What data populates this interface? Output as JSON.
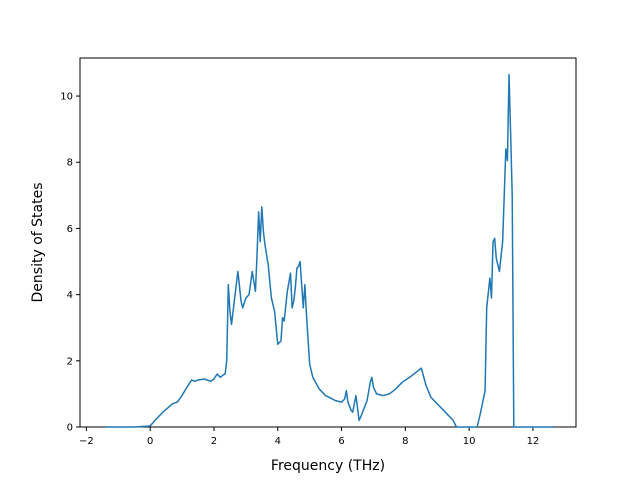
{
  "chart_data": {
    "type": "line",
    "title": "",
    "xlabel": "Frequency (THz)",
    "ylabel": "Density of States",
    "xlim": [
      -2.2,
      13.35
    ],
    "ylim": [
      0,
      11.15
    ],
    "xticks": [
      -2,
      0,
      2,
      4,
      6,
      8,
      10,
      12
    ],
    "xtick_labels": [
      "−2",
      "0",
      "2",
      "4",
      "6",
      "8",
      "10",
      "12"
    ],
    "yticks": [
      0,
      2,
      4,
      6,
      8,
      10
    ],
    "ytick_labels": [
      "0",
      "2",
      "4",
      "6",
      "8",
      "10"
    ],
    "grid": false,
    "legend": "none",
    "series": [
      {
        "color": "#1f77b4",
        "x": [
          -1.4,
          -0.5,
          0.0,
          0.15,
          0.4,
          0.7,
          0.85,
          1.0,
          1.15,
          1.3,
          1.4,
          1.5,
          1.7,
          1.9,
          2.0,
          2.1,
          2.2,
          2.3,
          2.35,
          2.4,
          2.45,
          2.5,
          2.55,
          2.65,
          2.75,
          2.85,
          2.9,
          3.0,
          3.1,
          3.2,
          3.3,
          3.35,
          3.4,
          3.45,
          3.5,
          3.55,
          3.6,
          3.7,
          3.8,
          3.9,
          4.0,
          4.1,
          4.15,
          4.2,
          4.3,
          4.4,
          4.45,
          4.5,
          4.55,
          4.6,
          4.65,
          4.7,
          4.8,
          4.85,
          4.9,
          5.0,
          5.05,
          5.1,
          5.3,
          5.5,
          5.6,
          5.8,
          6.0,
          6.1,
          6.15,
          6.2,
          6.3,
          6.35,
          6.45,
          6.55,
          6.6,
          6.8,
          6.9,
          6.95,
          7.0,
          7.1,
          7.3,
          7.5,
          7.7,
          7.9,
          8.2,
          8.4,
          8.5,
          8.65,
          8.8,
          9.2,
          9.5,
          9.6,
          10.05,
          10.25,
          10.35,
          10.5,
          10.55,
          10.65,
          10.7,
          10.75,
          10.8,
          10.85,
          10.95,
          11.05,
          11.15,
          11.2,
          11.25,
          11.3,
          11.35,
          11.4,
          11.45,
          11.5,
          11.55,
          12.0,
          12.65
        ],
        "y": [
          0.0,
          0.0,
          0.03,
          0.2,
          0.45,
          0.7,
          0.75,
          0.95,
          1.2,
          1.42,
          1.38,
          1.42,
          1.45,
          1.38,
          1.45,
          1.6,
          1.5,
          1.58,
          1.6,
          2.0,
          4.3,
          3.5,
          3.1,
          3.9,
          4.7,
          3.8,
          3.6,
          3.9,
          4.0,
          4.7,
          4.1,
          5.2,
          6.5,
          5.6,
          6.65,
          5.9,
          5.5,
          4.9,
          3.9,
          3.5,
          2.5,
          2.6,
          3.3,
          3.2,
          4.1,
          4.65,
          3.6,
          3.8,
          4.2,
          4.8,
          4.85,
          5.0,
          3.6,
          4.3,
          3.4,
          1.9,
          1.7,
          1.5,
          1.15,
          0.95,
          0.9,
          0.8,
          0.75,
          0.85,
          1.1,
          0.75,
          0.5,
          0.45,
          0.95,
          0.2,
          0.3,
          0.8,
          1.35,
          1.5,
          1.2,
          1.0,
          0.95,
          1.0,
          1.15,
          1.35,
          1.55,
          1.7,
          1.78,
          1.25,
          0.9,
          0.5,
          0.2,
          0.0,
          0.0,
          0.0,
          0.4,
          1.1,
          3.6,
          4.5,
          3.9,
          5.6,
          5.7,
          5.1,
          4.7,
          5.6,
          8.4,
          8.05,
          10.65,
          8.9,
          7.0,
          0.0,
          0.0,
          0.0,
          0.0,
          0.0,
          0.0
        ]
      }
    ]
  }
}
